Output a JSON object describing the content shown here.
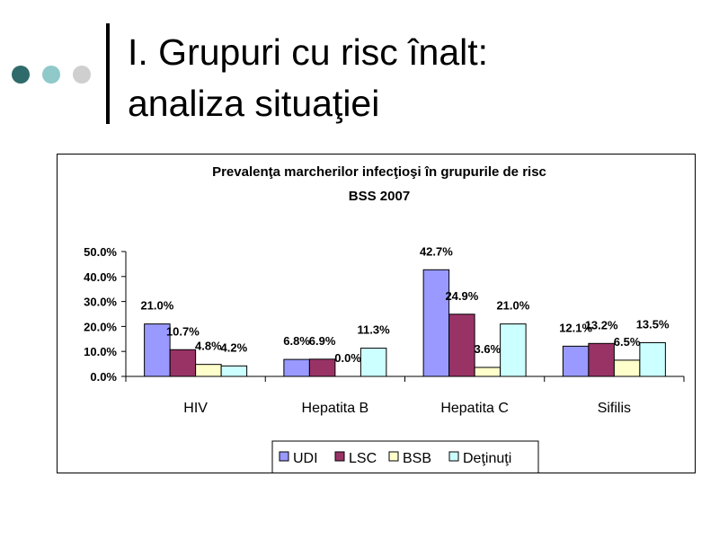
{
  "slide": {
    "title_line1": "I. Grupuri cu risc înalt:",
    "title_line2": "analiza situaţiei"
  },
  "chart_data": {
    "type": "bar",
    "title": "Prevalenţa marcherilor infecţioşi în grupurile de risc",
    "subtitle": "BSS 2007",
    "categories": [
      "HIV",
      "Hepatita B",
      "Hepatita C",
      "Sifilis"
    ],
    "series": [
      {
        "name": "UDI",
        "values": [
          21.0,
          6.8,
          42.7,
          12.1
        ],
        "labels": [
          "21.0%",
          "6.8%",
          "42.7%",
          "12.1%"
        ],
        "color": "#9999ff"
      },
      {
        "name": "LSC",
        "values": [
          10.7,
          6.9,
          24.9,
          13.2
        ],
        "labels": [
          "10.7%",
          "6.9%",
          "24.9%",
          "13.2%"
        ],
        "color": "#993366"
      },
      {
        "name": "BSB",
        "values": [
          4.8,
          0.0,
          3.6,
          6.5
        ],
        "labels": [
          "4.8%",
          "0.0%",
          "3.6%",
          "6.5%"
        ],
        "color": "#ffffcc"
      },
      {
        "name": "Deţinuţi",
        "values": [
          4.2,
          11.3,
          21.0,
          13.5
        ],
        "labels": [
          "4.2%",
          "11.3%",
          "21.0%",
          "13.5%"
        ],
        "color": "#ccffff"
      }
    ],
    "ylim": [
      0,
      50
    ],
    "yticks": [
      {
        "value": 50,
        "label": "50.0%"
      },
      {
        "value": 40,
        "label": "40.0%"
      },
      {
        "value": 30,
        "label": "30.0%"
      },
      {
        "value": 20,
        "label": "20.0%"
      },
      {
        "value": 10,
        "label": "10.0%"
      },
      {
        "value": 0,
        "label": "0.0%"
      }
    ],
    "grid": false,
    "legend_position": "bottom"
  }
}
